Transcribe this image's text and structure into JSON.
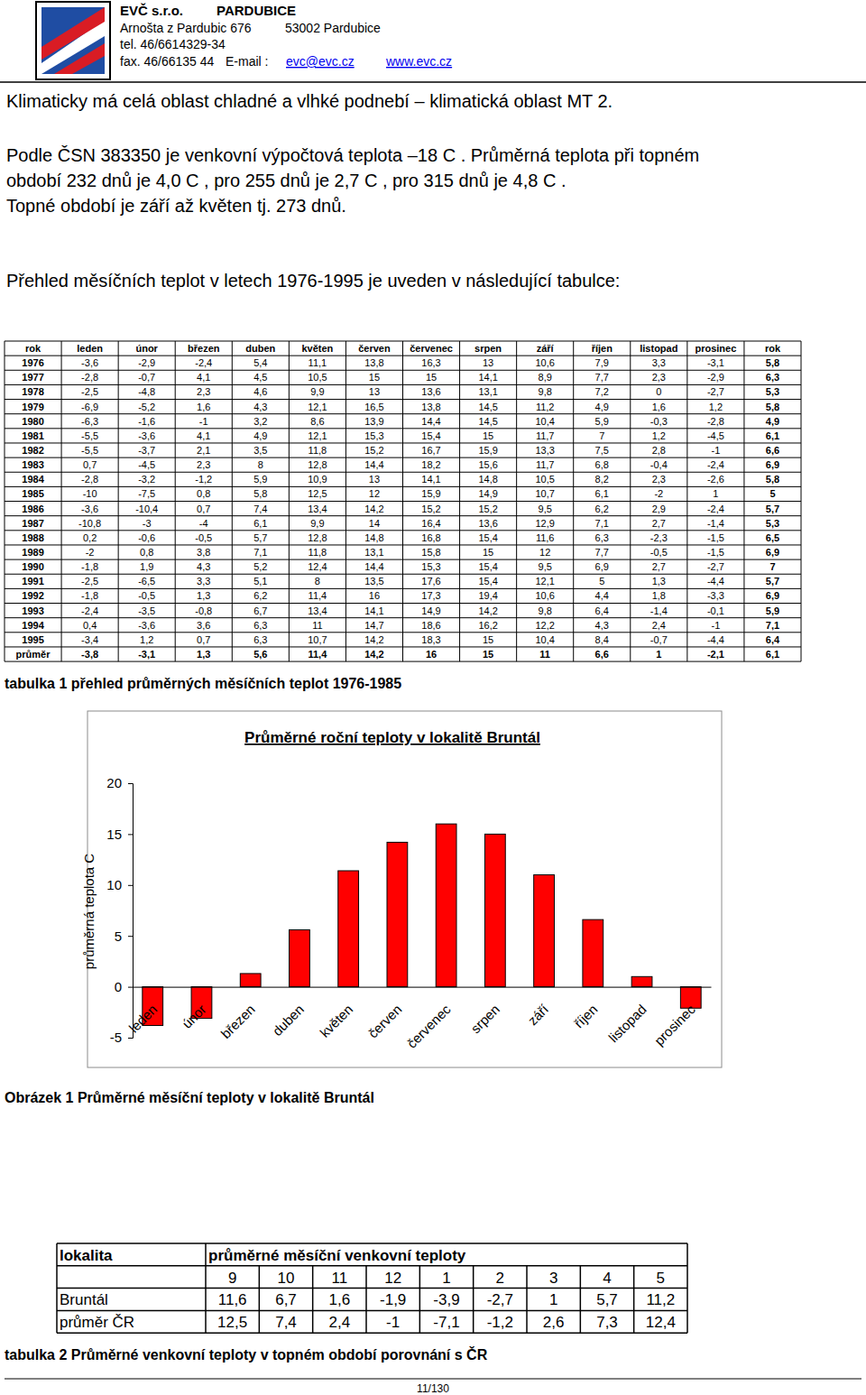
{
  "header": {
    "company": "EVČ s.r.o.",
    "city": "PARDUBICE",
    "address": "Arnošta z Pardubic 676",
    "postal": "53002 Pardubice",
    "phone": "tel. 46/6614329-34",
    "fax": "fax. 46/66135 44",
    "email_label": "E-mail :",
    "email": "evc@evc.cz",
    "web": "www.evc.cz"
  },
  "paragraphs": [
    "Klimaticky má celá oblast chladné a vlhké podnebí – klimatická oblast MT 2.",
    "Podle ČSN 383350 je venkovní výpočtová teplota –18 C . Průměrná teplota při topném",
    "období 232 dnů je 4,0 C , pro 255 dnů je 2,7 C , pro 315 dnů je 4,8 C .",
    "Topné období je září až květen tj. 273 dnů.",
    "Přehled měsíčních teplot v letech 1976-1995 je uveden v následující tabulce:"
  ],
  "table1": {
    "header": [
      "rok",
      "leden",
      "únor",
      "březen",
      "duben",
      "květen",
      "červen",
      "červenec",
      "srpen",
      "září",
      "říjen",
      "listopad",
      "prosinec",
      "rok"
    ],
    "rows": [
      [
        "1976",
        "-3,6",
        "-2,9",
        "-2,4",
        "5,4",
        "11,1",
        "13,8",
        "16,3",
        "13",
        "10,6",
        "7,9",
        "3,3",
        "-3,1",
        "5,8"
      ],
      [
        "1977",
        "-2,8",
        "-0,7",
        "4,1",
        "4,5",
        "10,5",
        "15",
        "15",
        "14,1",
        "8,9",
        "7,7",
        "2,3",
        "-2,9",
        "6,3"
      ],
      [
        "1978",
        "-2,5",
        "-4,8",
        "2,3",
        "4,6",
        "9,9",
        "13",
        "13,6",
        "13,1",
        "9,8",
        "7,2",
        "0",
        "-2,7",
        "5,3"
      ],
      [
        "1979",
        "-6,9",
        "-5,2",
        "1,6",
        "4,3",
        "12,1",
        "16,5",
        "13,8",
        "14,5",
        "11,2",
        "4,9",
        "1,6",
        "1,2",
        "5,8"
      ],
      [
        "1980",
        "-6,3",
        "-1,6",
        "-1",
        "3,2",
        "8,6",
        "13,9",
        "14,4",
        "14,5",
        "10,4",
        "5,9",
        "-0,3",
        "-2,8",
        "4,9"
      ],
      [
        "1981",
        "-5,5",
        "-3,6",
        "4,1",
        "4,9",
        "12,1",
        "15,3",
        "15,4",
        "15",
        "11,7",
        "7",
        "1,2",
        "-4,5",
        "6,1"
      ],
      [
        "1982",
        "-5,5",
        "-3,7",
        "2,1",
        "3,5",
        "11,8",
        "15,2",
        "16,7",
        "15,9",
        "13,3",
        "7,5",
        "2,8",
        "-1",
        "6,6"
      ],
      [
        "1983",
        "0,7",
        "-4,5",
        "2,3",
        "8",
        "12,8",
        "14,4",
        "18,2",
        "15,6",
        "11,7",
        "6,8",
        "-0,4",
        "-2,4",
        "6,9"
      ],
      [
        "1984",
        "-2,8",
        "-3,2",
        "-1,2",
        "5,9",
        "10,9",
        "13",
        "14,1",
        "14,8",
        "10,5",
        "8,2",
        "2,3",
        "-2,6",
        "5,8"
      ],
      [
        "1985",
        "-10",
        "-7,5",
        "0,8",
        "5,8",
        "12,5",
        "12",
        "15,9",
        "14,9",
        "10,7",
        "6,1",
        "-2",
        "1",
        "5"
      ],
      [
        "1986",
        "-3,6",
        "-10,4",
        "0,7",
        "7,4",
        "13,4",
        "14,2",
        "15,2",
        "15,2",
        "9,5",
        "6,2",
        "2,9",
        "-2,4",
        "5,7"
      ],
      [
        "1987",
        "-10,8",
        "-3",
        "-4",
        "6,1",
        "9,9",
        "14",
        "16,4",
        "13,6",
        "12,9",
        "7,1",
        "2,7",
        "-1,4",
        "5,3"
      ],
      [
        "1988",
        "0,2",
        "-0,6",
        "-0,5",
        "5,7",
        "12,8",
        "14,8",
        "16,8",
        "15,4",
        "11,6",
        "6,3",
        "-2,3",
        "-1,5",
        "6,5"
      ],
      [
        "1989",
        "-2",
        "0,8",
        "3,8",
        "7,1",
        "11,8",
        "13,1",
        "15,8",
        "15",
        "12",
        "7,7",
        "-0,5",
        "-1,5",
        "6,9"
      ],
      [
        "1990",
        "-1,8",
        "1,9",
        "4,3",
        "5,2",
        "12,4",
        "14,4",
        "15,3",
        "15,4",
        "9,5",
        "6,9",
        "2,7",
        "-2,7",
        "7"
      ],
      [
        "1991",
        "-2,5",
        "-6,5",
        "3,3",
        "5,1",
        "8",
        "13,5",
        "17,6",
        "15,4",
        "12,1",
        "5",
        "1,3",
        "-4,4",
        "5,7"
      ],
      [
        "1992",
        "-1,8",
        "-0,5",
        "1,3",
        "6,2",
        "11,4",
        "16",
        "17,3",
        "19,4",
        "10,6",
        "4,4",
        "1,8",
        "-3,3",
        "6,9"
      ],
      [
        "1993",
        "-2,4",
        "-3,5",
        "-0,8",
        "6,7",
        "13,4",
        "14,1",
        "14,9",
        "14,2",
        "9,8",
        "6,4",
        "-1,4",
        "-0,1",
        "5,9"
      ],
      [
        "1994",
        "0,4",
        "-3,6",
        "3,6",
        "6,3",
        "11",
        "14,7",
        "18,6",
        "16,2",
        "12,2",
        "4,3",
        "2,4",
        "-1",
        "7,1"
      ],
      [
        "1995",
        "-3,4",
        "1,2",
        "0,7",
        "6,3",
        "10,7",
        "14,2",
        "18,3",
        "15",
        "10,4",
        "8,4",
        "-0,7",
        "-4,4",
        "6,4"
      ],
      [
        "průměr",
        "-3,8",
        "-3,1",
        "1,3",
        "5,6",
        "11,4",
        "14,2",
        "16",
        "15",
        "11",
        "6,6",
        "1",
        "-2,1",
        "6,1"
      ]
    ],
    "caption": "tabulka 1 přehled průměrných měsíčních teplot  1976-1985"
  },
  "chart_data": {
    "type": "bar",
    "title": "Průměrné roční teploty v lokalitě Bruntál",
    "y_label": "průměrná teplota  C",
    "categories": [
      "leden",
      "únor",
      "březen",
      "duben",
      "květen",
      "červen",
      "červenec",
      "srpen",
      "září",
      "říjen",
      "listopad",
      "prosinec"
    ],
    "values": [
      -3.8,
      -3.1,
      1.3,
      5.6,
      11.4,
      14.2,
      16,
      15,
      11,
      6.6,
      1,
      -2.1
    ],
    "color": "#ff0000",
    "ylim": [
      -5,
      20
    ],
    "yticks": [
      -5,
      0,
      5,
      10,
      15,
      20
    ],
    "grid": false
  },
  "figure_caption": "Obrázek 1 Průměrné měsíční teploty v lokalitě Bruntál",
  "table2": {
    "header": [
      "lokalita",
      "průměrné měsíční venkovní teploty"
    ],
    "months": [
      "9",
      "10",
      "11",
      "12",
      "1",
      "2",
      "3",
      "4",
      "5"
    ],
    "rows": [
      [
        "Bruntál",
        "11,6",
        "6,7",
        "1,6",
        "-1,9",
        "-3,9",
        "-2,7",
        "1",
        "5,7",
        "11,2"
      ],
      [
        "průměr ČR",
        "12,5",
        "7,4",
        "2,4",
        "-1",
        "-7,1",
        "-1,2",
        "2,6",
        "7,3",
        "12,4"
      ]
    ],
    "caption": "tabulka 2 Průměrné venkovní teploty v topném období porovnání s ČR"
  },
  "footer": {
    "page": "11/130"
  }
}
